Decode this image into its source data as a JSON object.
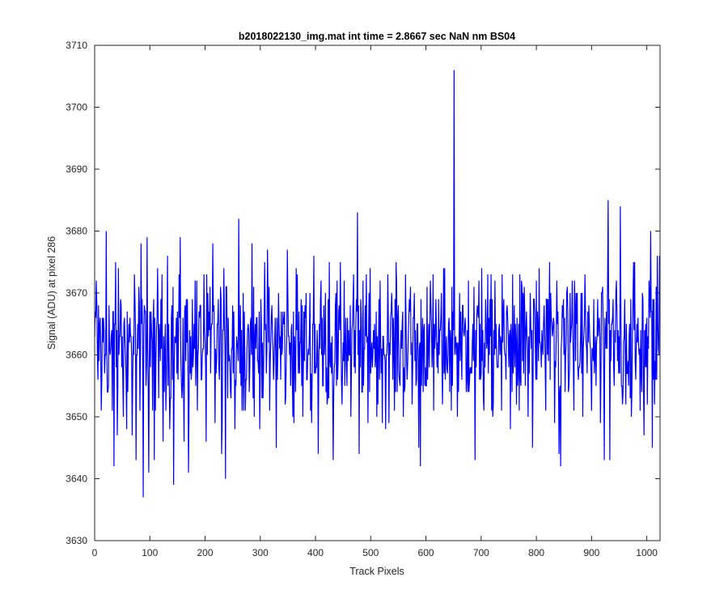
{
  "chart_data": {
    "type": "line",
    "title": "b2018022130_img.mat int time = 2.8667 sec  NaN nm BS04",
    "xlabel": "Track Pixels",
    "ylabel": "Signal (ADU) at pixel 286",
    "xlim": [
      0,
      1024
    ],
    "ylim": [
      3630,
      3710
    ],
    "xticks": [
      0,
      100,
      200,
      300,
      400,
      500,
      600,
      700,
      800,
      900,
      1000
    ],
    "yticks": [
      3630,
      3640,
      3650,
      3660,
      3670,
      3680,
      3690,
      3700,
      3710
    ],
    "grid": false,
    "legend": "none",
    "series_color": "#0000ff",
    "series": [
      {
        "n_points": 1024,
        "mean": 3662,
        "points": [
          [
            0,
            3663
          ],
          [
            3,
            3672
          ],
          [
            6,
            3656
          ],
          [
            9,
            3665
          ],
          [
            12,
            3651
          ],
          [
            15,
            3662
          ],
          [
            18,
            3657
          ],
          [
            21,
            3680
          ],
          [
            24,
            3654
          ],
          [
            28,
            3660
          ],
          [
            32,
            3651
          ],
          [
            35,
            3642
          ],
          [
            38,
            3675
          ],
          [
            41,
            3647
          ],
          [
            45,
            3663
          ],
          [
            48,
            3668
          ],
          [
            52,
            3650
          ],
          [
            56,
            3660
          ],
          [
            60,
            3654
          ],
          [
            64,
            3666
          ],
          [
            68,
            3647
          ],
          [
            72,
            3673
          ],
          [
            75,
            3643
          ],
          [
            79,
            3661
          ],
          [
            82,
            3651
          ],
          [
            84,
            3678
          ],
          [
            88,
            3637
          ],
          [
            92,
            3667
          ],
          [
            95,
            3679
          ],
          [
            98,
            3641
          ],
          [
            102,
            3667
          ],
          [
            105,
            3651
          ],
          [
            108,
            3643
          ],
          [
            112,
            3664
          ],
          [
            116,
            3653
          ],
          [
            120,
            3669
          ],
          [
            124,
            3646
          ],
          [
            128,
            3665
          ],
          [
            132,
            3676
          ],
          [
            136,
            3648
          ],
          [
            140,
            3668
          ],
          [
            143,
            3639
          ],
          [
            147,
            3662
          ],
          [
            151,
            3656
          ],
          [
            155,
            3679
          ],
          [
            158,
            3653
          ],
          [
            162,
            3646
          ],
          [
            166,
            3669
          ],
          [
            170,
            3641
          ],
          [
            174,
            3663
          ],
          [
            178,
            3658
          ],
          [
            182,
            3672
          ],
          [
            186,
            3651
          ],
          [
            190,
            3666
          ],
          [
            194,
            3656
          ],
          [
            198,
            3673
          ],
          [
            202,
            3646
          ],
          [
            206,
            3663
          ],
          [
            210,
            3657
          ],
          [
            214,
            3678
          ],
          [
            218,
            3649
          ],
          [
            222,
            3665
          ],
          [
            226,
            3656
          ],
          [
            230,
            3644
          ],
          [
            234,
            3674
          ],
          [
            237,
            3640
          ],
          [
            242,
            3666
          ],
          [
            246,
            3654
          ],
          [
            250,
            3668
          ],
          [
            254,
            3648
          ],
          [
            258,
            3662
          ],
          [
            261,
            3682
          ],
          [
            265,
            3655
          ],
          [
            269,
            3670
          ],
          [
            273,
            3651
          ],
          [
            277,
            3664
          ],
          [
            281,
            3658
          ],
          [
            285,
            3678
          ],
          [
            289,
            3650
          ],
          [
            293,
            3666
          ],
          [
            297,
            3657
          ],
          [
            301,
            3669
          ],
          [
            305,
            3653
          ],
          [
            309,
            3664
          ],
          [
            313,
            3677
          ],
          [
            317,
            3651
          ],
          [
            321,
            3668
          ],
          [
            325,
            3659
          ],
          [
            329,
            3645
          ],
          [
            333,
            3670
          ],
          [
            337,
            3656
          ],
          [
            341,
            3667
          ],
          [
            345,
            3652
          ],
          [
            349,
            3677
          ],
          [
            353,
            3660
          ],
          [
            357,
            3665
          ],
          [
            361,
            3649
          ],
          [
            365,
            3674
          ],
          [
            369,
            3657
          ],
          [
            373,
            3662
          ],
          [
            377,
            3650
          ],
          [
            381,
            3668
          ],
          [
            385,
            3656
          ],
          [
            389,
            3664
          ],
          [
            393,
            3649
          ],
          [
            397,
            3676
          ],
          [
            401,
            3658
          ],
          [
            405,
            3644
          ],
          [
            409,
            3669
          ],
          [
            413,
            3655
          ],
          [
            417,
            3663
          ],
          [
            421,
            3652
          ],
          [
            425,
            3675
          ],
          [
            429,
            3657
          ],
          [
            432,
            3643
          ],
          [
            436,
            3668
          ],
          [
            440,
            3656
          ],
          [
            444,
            3664
          ],
          [
            448,
            3652
          ],
          [
            452,
            3672
          ],
          [
            456,
            3658
          ],
          [
            460,
            3664
          ],
          [
            464,
            3650
          ],
          [
            468,
            3669
          ],
          [
            472,
            3657
          ],
          [
            476,
            3683
          ],
          [
            479,
            3644
          ],
          [
            483,
            3666
          ],
          [
            487,
            3655
          ],
          [
            491,
            3663
          ],
          [
            495,
            3649
          ],
          [
            499,
            3674
          ],
          [
            503,
            3658
          ],
          [
            507,
            3665
          ],
          [
            511,
            3650
          ],
          [
            515,
            3669
          ],
          [
            519,
            3657
          ],
          [
            523,
            3663
          ],
          [
            527,
            3648
          ],
          [
            531,
            3673
          ],
          [
            535,
            3660
          ],
          [
            539,
            3666
          ],
          [
            543,
            3651
          ],
          [
            547,
            3671
          ],
          [
            551,
            3657
          ],
          [
            555,
            3664
          ],
          [
            559,
            3650
          ],
          [
            563,
            3673
          ],
          [
            567,
            3659
          ],
          [
            571,
            3667
          ],
          [
            575,
            3652
          ],
          [
            579,
            3670
          ],
          [
            583,
            3656
          ],
          [
            587,
            3645
          ],
          [
            590,
            3642
          ],
          [
            594,
            3666
          ],
          [
            598,
            3655
          ],
          [
            602,
            3671
          ],
          [
            606,
            3658
          ],
          [
            610,
            3665
          ],
          [
            614,
            3651
          ],
          [
            618,
            3669
          ],
          [
            622,
            3657
          ],
          [
            626,
            3664
          ],
          [
            630,
            3652
          ],
          [
            634,
            3674
          ],
          [
            638,
            3658
          ],
          [
            642,
            3666
          ],
          [
            646,
            3651
          ],
          [
            649,
            3667
          ],
          [
            651,
            3706
          ],
          [
            653,
            3662
          ],
          [
            657,
            3650
          ],
          [
            661,
            3670
          ],
          [
            665,
            3656
          ],
          [
            669,
            3663
          ],
          [
            673,
            3654
          ],
          [
            677,
            3672
          ],
          [
            681,
            3657
          ],
          [
            685,
            3665
          ],
          [
            689,
            3643
          ],
          [
            693,
            3668
          ],
          [
            697,
            3656
          ],
          [
            701,
            3674
          ],
          [
            705,
            3651
          ],
          [
            709,
            3666
          ],
          [
            713,
            3657
          ],
          [
            717,
            3663
          ],
          [
            721,
            3650
          ],
          [
            725,
            3672
          ],
          [
            729,
            3658
          ],
          [
            733,
            3665
          ],
          [
            737,
            3651
          ],
          [
            741,
            3669
          ],
          [
            745,
            3656
          ],
          [
            749,
            3663
          ],
          [
            753,
            3648
          ],
          [
            757,
            3673
          ],
          [
            761,
            3658
          ],
          [
            765,
            3666
          ],
          [
            769,
            3651
          ],
          [
            773,
            3672
          ],
          [
            777,
            3657
          ],
          [
            781,
            3664
          ],
          [
            785,
            3650
          ],
          [
            789,
            3670
          ],
          [
            793,
            3645
          ],
          [
            797,
            3667
          ],
          [
            801,
            3656
          ],
          [
            805,
            3674
          ],
          [
            809,
            3658
          ],
          [
            813,
            3665
          ],
          [
            817,
            3651
          ],
          [
            821,
            3669
          ],
          [
            825,
            3656
          ],
          [
            829,
            3663
          ],
          [
            833,
            3649
          ],
          [
            837,
            3672
          ],
          [
            841,
            3644
          ],
          [
            844,
            3642
          ],
          [
            848,
            3666
          ],
          [
            852,
            3654
          ],
          [
            856,
            3671
          ],
          [
            860,
            3658
          ],
          [
            864,
            3665
          ],
          [
            868,
            3651
          ],
          [
            872,
            3670
          ],
          [
            876,
            3656
          ],
          [
            880,
            3663
          ],
          [
            884,
            3650
          ],
          [
            888,
            3673
          ],
          [
            892,
            3657
          ],
          [
            896,
            3665
          ],
          [
            900,
            3651
          ],
          [
            904,
            3669
          ],
          [
            908,
            3655
          ],
          [
            912,
            3663
          ],
          [
            916,
            3649
          ],
          [
            920,
            3671
          ],
          [
            923,
            3643
          ],
          [
            927,
            3667
          ],
          [
            930,
            3685
          ],
          [
            933,
            3643
          ],
          [
            937,
            3665
          ],
          [
            941,
            3655
          ],
          [
            945,
            3672
          ],
          [
            949,
            3657
          ],
          [
            952,
            3684
          ],
          [
            956,
            3652
          ],
          [
            960,
            3669
          ],
          [
            964,
            3657
          ],
          [
            968,
            3663
          ],
          [
            972,
            3650
          ],
          [
            976,
            3675
          ],
          [
            980,
            3656
          ],
          [
            984,
            3666
          ],
          [
            988,
            3651
          ],
          [
            992,
            3670
          ],
          [
            995,
            3647
          ],
          [
            998,
            3665
          ],
          [
            1001,
            3652
          ],
          [
            1004,
            3672
          ],
          [
            1007,
            3680
          ],
          [
            1010,
            3645
          ],
          [
            1013,
            3669
          ],
          [
            1016,
            3656
          ],
          [
            1019,
            3676
          ],
          [
            1021,
            3661
          ],
          [
            1023,
            3676
          ]
        ]
      }
    ]
  }
}
